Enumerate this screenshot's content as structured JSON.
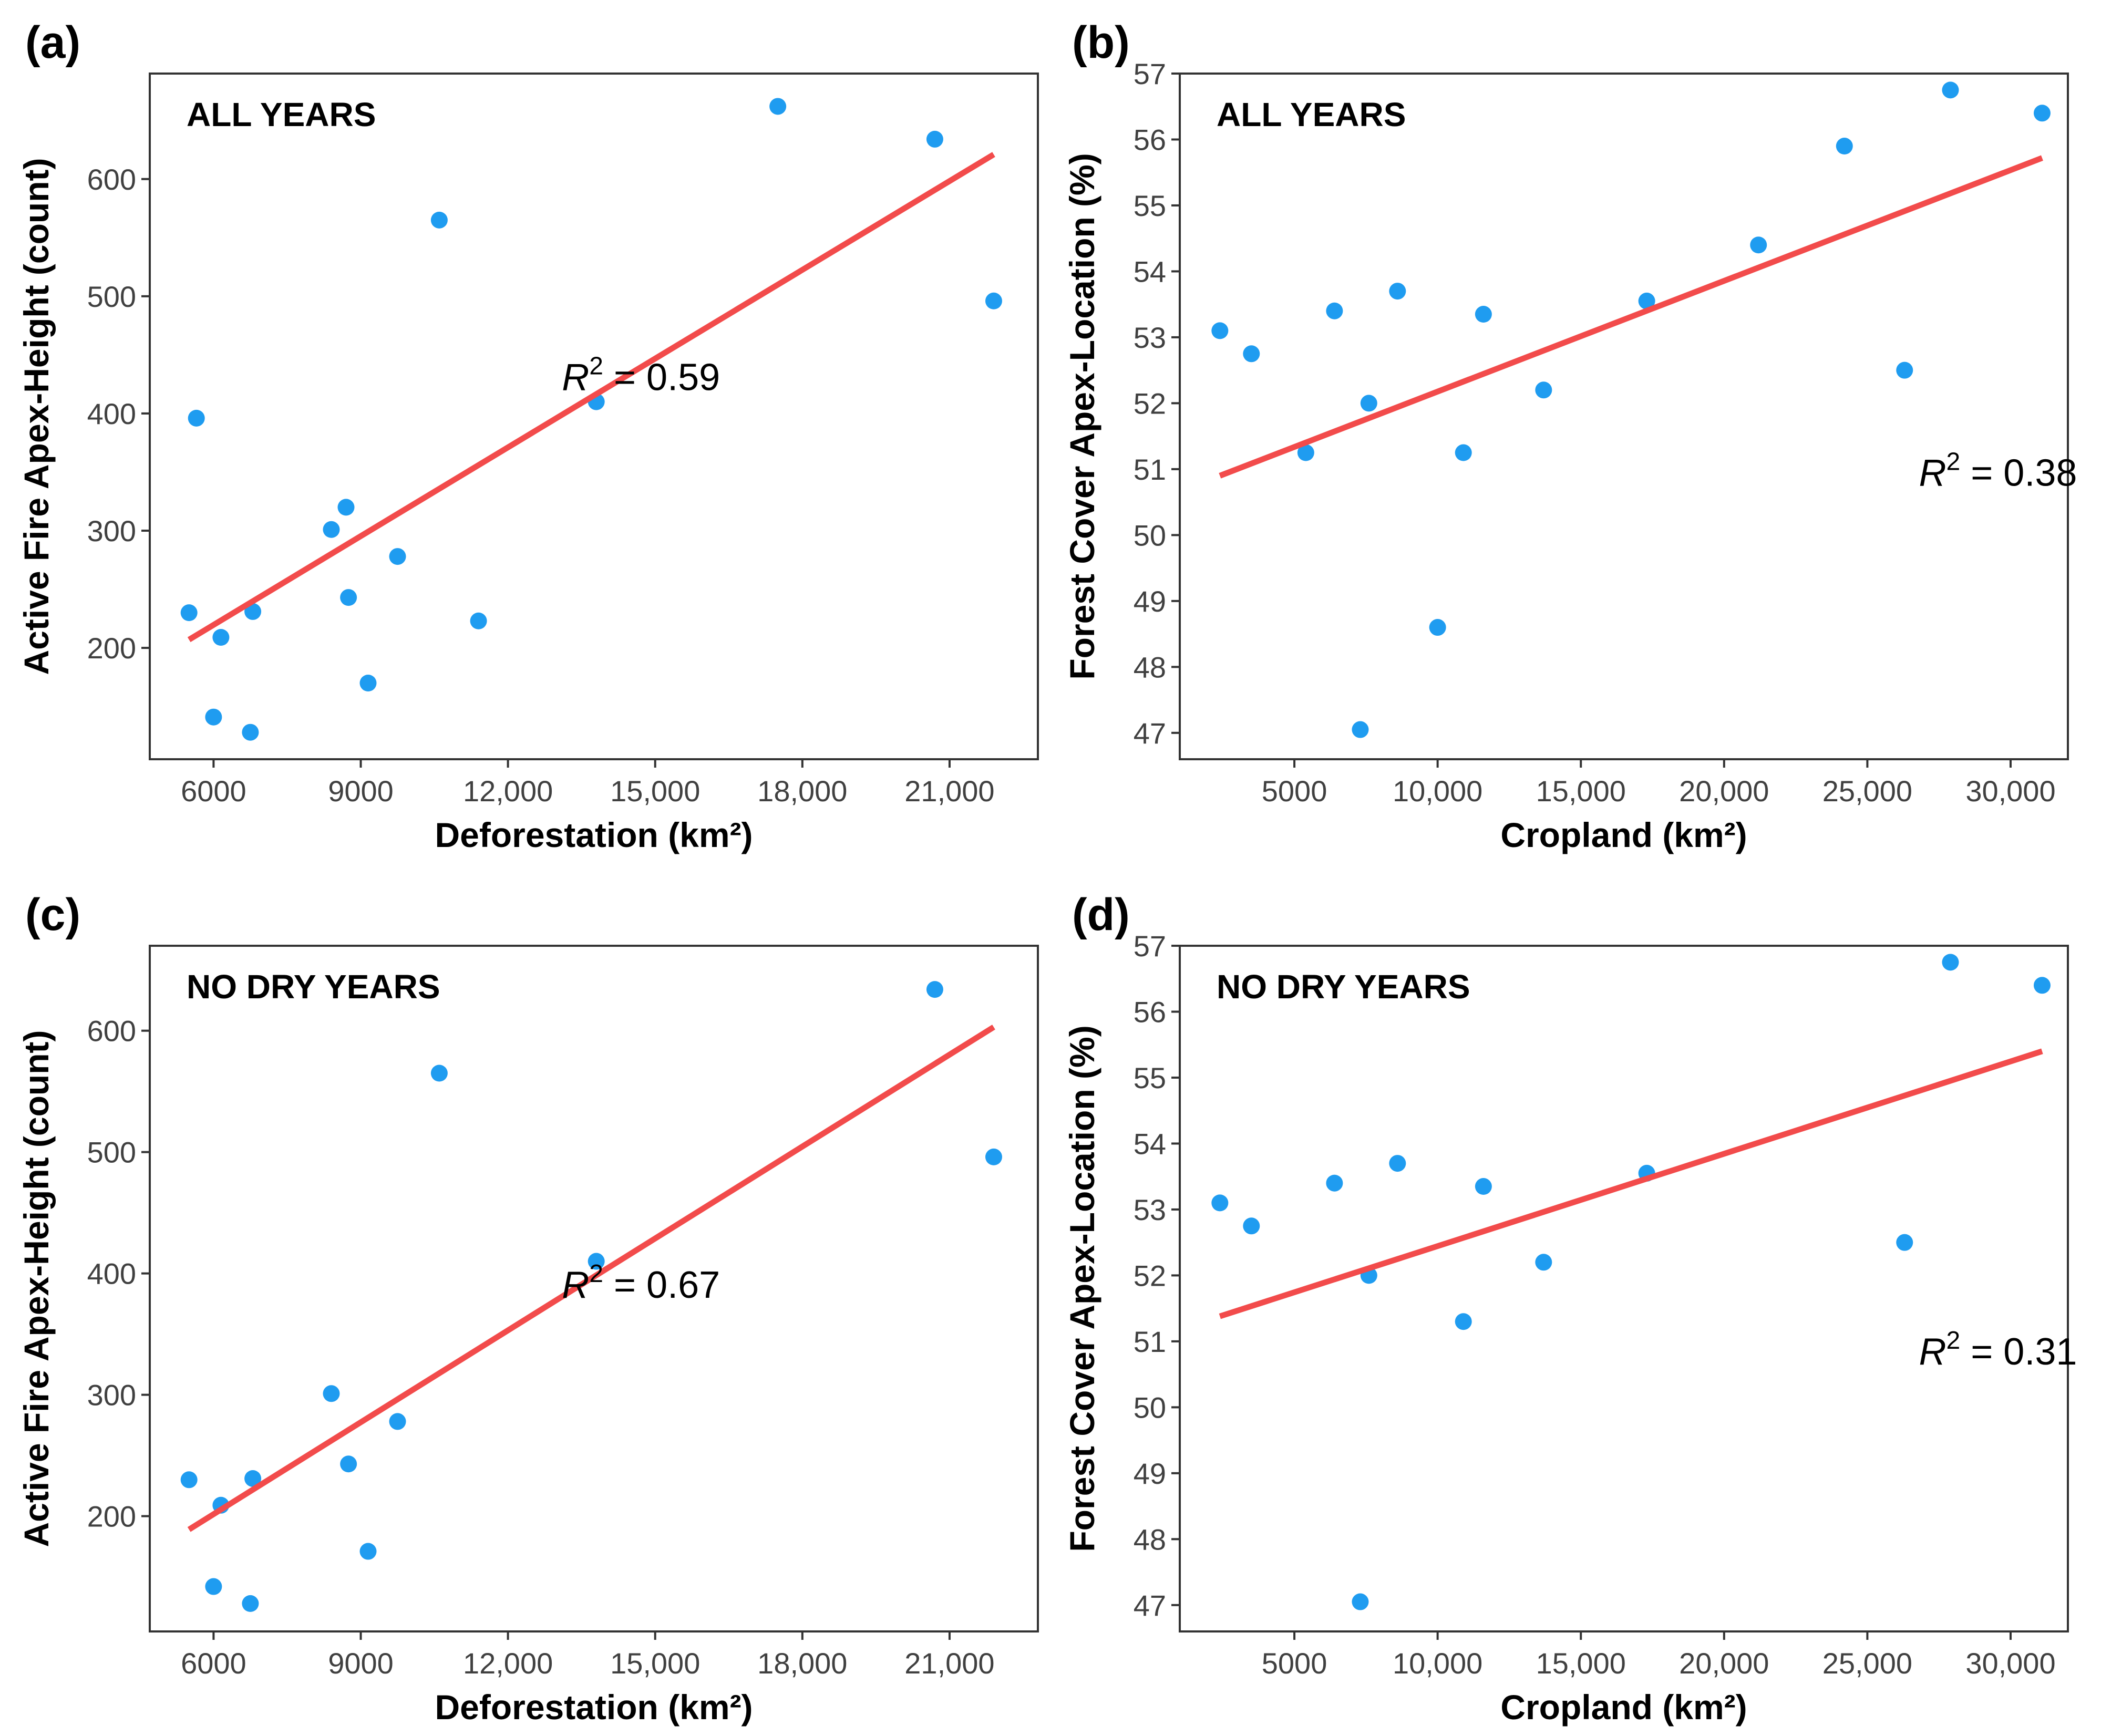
{
  "colors": {
    "point": "#1f9cf0",
    "line": "#f24b4b",
    "axis": "#333333"
  },
  "chart_data": [
    {
      "id": "a",
      "type": "scatter",
      "panel_label": "(a)",
      "annotation": "ALL YEARS",
      "xlabel": "Deforestation (km²)",
      "ylabel": "Active Fire Apex-Height (count)",
      "xlim": [
        4700,
        22800
      ],
      "ylim": [
        105,
        690
      ],
      "xticks": [
        6000,
        9000,
        12000,
        15000,
        18000,
        21000
      ],
      "xtick_labels": [
        "6000",
        "9000",
        "12,000",
        "15,000",
        "18,000",
        "21,000"
      ],
      "yticks": [
        200,
        300,
        400,
        500,
        600
      ],
      "ytick_labels": [
        "200",
        "300",
        "400",
        "500",
        "600"
      ],
      "r2_symbol": "R",
      "r2_exp": "2",
      "r2_text": " = 0.59",
      "r2_pos": [
        13100,
        420
      ],
      "fit": {
        "x": [
          5500,
          21900
        ],
        "y": [
          207,
          621
        ]
      },
      "points": [
        [
          5500,
          230
        ],
        [
          5650,
          396
        ],
        [
          6000,
          141
        ],
        [
          6150,
          209
        ],
        [
          6750,
          128
        ],
        [
          6800,
          231
        ],
        [
          8400,
          301
        ],
        [
          8700,
          320
        ],
        [
          8750,
          243
        ],
        [
          9150,
          170
        ],
        [
          9750,
          278
        ],
        [
          10600,
          565
        ],
        [
          11400,
          223
        ],
        [
          13800,
          410
        ],
        [
          17500,
          662
        ],
        [
          20700,
          634
        ],
        [
          21900,
          496
        ]
      ]
    },
    {
      "id": "b",
      "type": "scatter",
      "panel_label": "(b)",
      "annotation": "ALL YEARS",
      "xlabel": "Cropland (km²)",
      "ylabel": "Forest Cover Apex-Location (%)",
      "xlim": [
        1000,
        32000
      ],
      "ylim": [
        46.6,
        57.0
      ],
      "xticks": [
        5000,
        10000,
        15000,
        20000,
        25000,
        30000
      ],
      "xtick_labels": [
        "5000",
        "10,000",
        "15,000",
        "20,000",
        "25,000",
        "30,000"
      ],
      "yticks": [
        47,
        48,
        49,
        50,
        51,
        52,
        53,
        54,
        55,
        56,
        57
      ],
      "ytick_labels": [
        "47",
        "48",
        "49",
        "50",
        "51",
        "52",
        "53",
        "54",
        "55",
        "56",
        "57"
      ],
      "r2_symbol": "R",
      "r2_exp": "2",
      "r2_text": " = 0.38",
      "r2_pos": [
        26800,
        50.75
      ],
      "fit": {
        "x": [
          2400,
          31100
        ],
        "y": [
          50.9,
          55.72
        ]
      },
      "points": [
        [
          2400,
          53.1
        ],
        [
          3500,
          52.75
        ],
        [
          5400,
          51.25
        ],
        [
          6400,
          53.4
        ],
        [
          7300,
          47.05
        ],
        [
          7600,
          52.0
        ],
        [
          8600,
          53.7
        ],
        [
          10000,
          48.6
        ],
        [
          10900,
          51.25
        ],
        [
          11600,
          53.35
        ],
        [
          13700,
          52.2
        ],
        [
          17300,
          53.55
        ],
        [
          21200,
          54.4
        ],
        [
          24200,
          55.9
        ],
        [
          26300,
          52.5
        ],
        [
          27900,
          56.75
        ],
        [
          31100,
          56.4
        ]
      ]
    },
    {
      "id": "c",
      "type": "scatter",
      "panel_label": "(c)",
      "annotation": "NO DRY YEARS",
      "xlabel": "Deforestation (km²)",
      "ylabel": "Active Fire Apex-Height (count)",
      "xlim": [
        4700,
        22800
      ],
      "ylim": [
        105,
        670
      ],
      "xticks": [
        6000,
        9000,
        12000,
        15000,
        18000,
        21000
      ],
      "xtick_labels": [
        "6000",
        "9000",
        "12,000",
        "15,000",
        "18,000",
        "21,000"
      ],
      "yticks": [
        200,
        300,
        400,
        500,
        600
      ],
      "ytick_labels": [
        "200",
        "300",
        "400",
        "500",
        "600"
      ],
      "r2_symbol": "R",
      "r2_exp": "2",
      "r2_text": " = 0.67",
      "r2_pos": [
        13100,
        380
      ],
      "fit": {
        "x": [
          5500,
          21900
        ],
        "y": [
          189,
          603
        ]
      },
      "points": [
        [
          5500,
          230
        ],
        [
          6000,
          142
        ],
        [
          6150,
          209
        ],
        [
          6750,
          128
        ],
        [
          6800,
          231
        ],
        [
          8400,
          301
        ],
        [
          8750,
          243
        ],
        [
          9150,
          171
        ],
        [
          9750,
          278
        ],
        [
          10600,
          565
        ],
        [
          13800,
          410
        ],
        [
          20700,
          634
        ],
        [
          21900,
          496
        ]
      ]
    },
    {
      "id": "d",
      "type": "scatter",
      "panel_label": "(d)",
      "annotation": "NO DRY YEARS",
      "xlabel": "Cropland (km²)",
      "ylabel": "Forest Cover Apex-Location (%)",
      "xlim": [
        1000,
        32000
      ],
      "ylim": [
        46.6,
        57.0
      ],
      "xticks": [
        5000,
        10000,
        15000,
        20000,
        25000,
        30000
      ],
      "xtick_labels": [
        "5000",
        "10,000",
        "15,000",
        "20,000",
        "25,000",
        "30,000"
      ],
      "yticks": [
        47,
        48,
        49,
        50,
        51,
        52,
        53,
        54,
        55,
        56,
        57
      ],
      "ytick_labels": [
        "47",
        "48",
        "49",
        "50",
        "51",
        "52",
        "53",
        "54",
        "55",
        "56",
        "57"
      ],
      "r2_symbol": "R",
      "r2_exp": "2",
      "r2_text": " = 0.31",
      "r2_pos": [
        26800,
        50.65
      ],
      "fit": {
        "x": [
          2400,
          31100
        ],
        "y": [
          51.38,
          55.4
        ]
      },
      "points": [
        [
          2400,
          53.1
        ],
        [
          3500,
          52.75
        ],
        [
          6400,
          53.4
        ],
        [
          7300,
          47.05
        ],
        [
          7600,
          52.0
        ],
        [
          8600,
          53.7
        ],
        [
          10900,
          51.3
        ],
        [
          11600,
          53.35
        ],
        [
          13700,
          52.2
        ],
        [
          17300,
          53.55
        ],
        [
          26300,
          52.5
        ],
        [
          27900,
          56.75
        ],
        [
          31100,
          56.4
        ]
      ]
    }
  ]
}
